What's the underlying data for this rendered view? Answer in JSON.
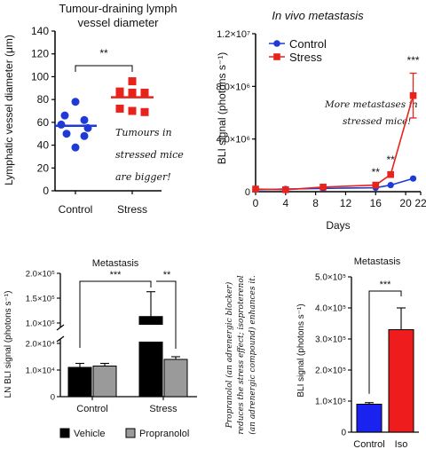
{
  "chart_data": [
    {
      "type": "scatter",
      "title": "Tumour-draining lymph vessel diameter",
      "title_lines": [
        "Tumour-draining lymph",
        "vessel diameter"
      ],
      "ylabel": "Lymphatic vessel diameter (μm)",
      "ylim": [
        0,
        140
      ],
      "yticks": [
        0,
        20,
        40,
        60,
        80,
        100,
        120,
        140
      ],
      "categories": [
        "Control",
        "Stress"
      ],
      "series": [
        {
          "name": "Control",
          "color": "#1f3ad6",
          "marker": "circle",
          "values": [
            78,
            66,
            62,
            58,
            55,
            50,
            48,
            38
          ],
          "mean": 57
        },
        {
          "name": "Stress",
          "color": "#e8231c",
          "marker": "square",
          "values": [
            96,
            87,
            86,
            86,
            85,
            72,
            70,
            69
          ],
          "mean": 82
        }
      ],
      "significance": "**",
      "annotation_lines": [
        "Tumours in",
        "stressed mice",
        "are bigger!"
      ]
    },
    {
      "type": "line",
      "title": "In vivo metastasis",
      "xlabel": "Days",
      "ylabel": "BLI signal (photons s⁻¹)",
      "xlim": [
        0,
        22
      ],
      "xticks": [
        0,
        4,
        8,
        12,
        16,
        20,
        22
      ],
      "ylim": [
        0,
        12000000
      ],
      "ytick_values": [
        0,
        4000000,
        8000000,
        12000000
      ],
      "ytick_labels": [
        "0",
        "4.0×10⁶",
        "8.0×10⁶",
        "1.2×10⁷"
      ],
      "legend_position": "top-left",
      "series": [
        {
          "name": "Control",
          "color": "#1f3ad6",
          "marker": "circle",
          "x": [
            0,
            4,
            9,
            16,
            18,
            21
          ],
          "y": [
            150000,
            200000,
            250000,
            300000,
            500000,
            1000000
          ]
        },
        {
          "name": "Stress",
          "color": "#e8231c",
          "marker": "square",
          "x": [
            0,
            4,
            9,
            16,
            18,
            21
          ],
          "y": [
            200000,
            150000,
            350000,
            500000,
            1300000,
            7300000
          ],
          "error": [
            0,
            0,
            0,
            0,
            0,
            1700000
          ]
        }
      ],
      "significance": [
        {
          "x": 16,
          "label": "**"
        },
        {
          "x": 18,
          "label": "**"
        },
        {
          "x": 21,
          "label": "***"
        }
      ],
      "annotation_lines": [
        "More metastases in",
        "stressed mice!"
      ]
    },
    {
      "type": "bar",
      "title": "Metastasis",
      "ylabel": "LN BLI signal (photons s⁻¹)",
      "categories": [
        "Control",
        "Stress"
      ],
      "y_axis_broken": true,
      "lower_segment": {
        "ylim": [
          0,
          20000
        ],
        "ytick_values": [
          0,
          10000,
          20000
        ],
        "ytick_labels": [
          "0",
          "1.0×10⁴",
          "2.0×10⁴"
        ]
      },
      "upper_segment": {
        "ylim": [
          100000,
          200000
        ],
        "ytick_values": [
          100000,
          150000,
          200000
        ],
        "ytick_labels": [
          "1.0×10⁵",
          "1.5×10⁵",
          "2.0×10⁵"
        ]
      },
      "series": [
        {
          "name": "Vehicle",
          "color": "#000000",
          "values": [
            11000,
            113000
          ],
          "error": [
            1500,
            50000
          ]
        },
        {
          "name": "Propranolol",
          "color": "#9a9a9a",
          "values": [
            11500,
            14000
          ],
          "error": [
            1000,
            1000
          ]
        }
      ],
      "significance": [
        "***",
        "**"
      ]
    },
    {
      "type": "bar",
      "title": "Metastasis",
      "ylabel": "BLI signal (photons s⁻¹)",
      "categories": [
        "Control",
        "Iso"
      ],
      "colors": [
        "#1a22f0",
        "#ee1c1c"
      ],
      "values": [
        90000,
        330000
      ],
      "error": [
        5000,
        70000
      ],
      "ylim": [
        0,
        500000
      ],
      "ytick_values": [
        0,
        100000,
        200000,
        300000,
        400000,
        500000
      ],
      "ytick_labels": [
        "0",
        "1.0×10⁵",
        "2.0×10⁵",
        "3.0×10⁵",
        "4.0×10⁵",
        "5.0×10⁵"
      ],
      "significance": "***"
    }
  ],
  "side_note_lines": [
    "Propranolol (an adrenergic blocker)",
    "reduces the stress effect; isoproterenol",
    "(an adrenergic compound) enhances it."
  ]
}
